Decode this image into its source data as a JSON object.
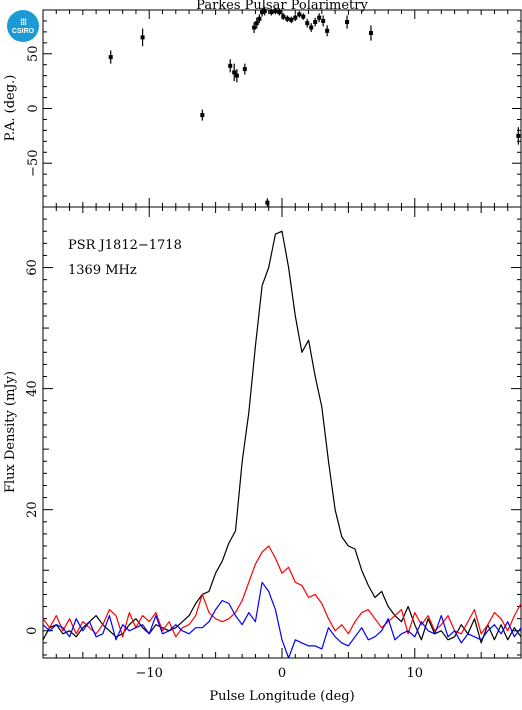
{
  "title": "Parkes Pulsar Polarimetry",
  "logo_text": "CSIRO",
  "chart_data": [
    {
      "type": "scatter",
      "panel": "top",
      "ylabel": "P.A. (deg.)",
      "xlabel": "",
      "xlim": [
        -18,
        18
      ],
      "ylim": [
        -90,
        90
      ],
      "x_ticks": [
        -10,
        0,
        10
      ],
      "y_ticks": [
        -50,
        0,
        50
      ],
      "y_tick_labels": [
        "−50",
        "0",
        "50"
      ],
      "points": [
        {
          "x": -12.9,
          "y": 47,
          "err": 6
        },
        {
          "x": -10.5,
          "y": 65,
          "err": 8
        },
        {
          "x": -6.0,
          "y": -6,
          "err": 5
        },
        {
          "x": -3.9,
          "y": 39,
          "err": 6
        },
        {
          "x": -3.6,
          "y": 33,
          "err": 8
        },
        {
          "x": -3.4,
          "y": 30,
          "err": 6
        },
        {
          "x": -2.8,
          "y": 36,
          "err": 5
        },
        {
          "x": -2.1,
          "y": 74,
          "err": 5
        },
        {
          "x": -1.9,
          "y": 78,
          "err": 5
        },
        {
          "x": -1.7,
          "y": 82,
          "err": 4
        },
        {
          "x": -1.5,
          "y": 88,
          "err": 4
        },
        {
          "x": -1.3,
          "y": 89,
          "err": 4
        },
        {
          "x": -1.1,
          "y": -86,
          "err": 4
        },
        {
          "x": -0.8,
          "y": 88,
          "err": 3
        },
        {
          "x": -0.5,
          "y": 89,
          "err": 3
        },
        {
          "x": -0.2,
          "y": 88,
          "err": 3
        },
        {
          "x": 0.1,
          "y": 84,
          "err": 3
        },
        {
          "x": 0.4,
          "y": 82,
          "err": 3
        },
        {
          "x": 0.7,
          "y": 81,
          "err": 3
        },
        {
          "x": 1.0,
          "y": 83,
          "err": 3
        },
        {
          "x": 1.3,
          "y": 86,
          "err": 3
        },
        {
          "x": 1.6,
          "y": 84,
          "err": 3
        },
        {
          "x": 1.9,
          "y": 78,
          "err": 4
        },
        {
          "x": 2.2,
          "y": 74,
          "err": 4
        },
        {
          "x": 2.5,
          "y": 79,
          "err": 4
        },
        {
          "x": 2.8,
          "y": 83,
          "err": 4
        },
        {
          "x": 3.1,
          "y": 80,
          "err": 5
        },
        {
          "x": 3.4,
          "y": 71,
          "err": 5
        },
        {
          "x": 4.9,
          "y": 79,
          "err": 6
        },
        {
          "x": 6.7,
          "y": 69,
          "err": 7
        },
        {
          "x": 17.8,
          "y": -25,
          "err": 8
        }
      ]
    },
    {
      "type": "line",
      "panel": "bottom",
      "xlabel": "Pulse Longitude (deg)",
      "ylabel": "Flux Density (mJy)",
      "xlim": [
        -18,
        18
      ],
      "ylim": [
        -4.5,
        70
      ],
      "x_ticks": [
        -10,
        0,
        10
      ],
      "x_tick_labels": [
        "−10",
        "0",
        "10"
      ],
      "y_ticks": [
        0,
        20,
        40,
        60
      ],
      "annotations": [
        "PSR J1812−1718",
        "1369 MHz"
      ],
      "x": [
        -18.0,
        -17.5,
        -17.0,
        -16.5,
        -16.0,
        -15.5,
        -15.0,
        -14.5,
        -14.0,
        -13.5,
        -13.0,
        -12.5,
        -12.0,
        -11.5,
        -11.0,
        -10.5,
        -10.0,
        -9.5,
        -9.0,
        -8.5,
        -8.0,
        -7.5,
        -7.0,
        -6.5,
        -6.0,
        -5.5,
        -5.0,
        -4.5,
        -4.0,
        -3.5,
        -3.0,
        -2.5,
        -2.0,
        -1.5,
        -1.0,
        -0.5,
        0.0,
        0.5,
        1.0,
        1.5,
        2.0,
        2.5,
        3.0,
        3.5,
        4.0,
        4.5,
        5.0,
        5.5,
        6.0,
        6.5,
        7.0,
        7.5,
        8.0,
        8.5,
        9.0,
        9.5,
        10.0,
        10.5,
        11.0,
        11.5,
        12.0,
        12.5,
        13.0,
        13.5,
        14.0,
        14.5,
        15.0,
        15.5,
        16.0,
        16.5,
        17.0,
        17.5,
        18.0
      ],
      "series": [
        {
          "color": "#000000",
          "values": [
            -1.5,
            0.5,
            1.0,
            -0.5,
            0.0,
            -1.0,
            0.5,
            1.5,
            2.5,
            1.0,
            0.0,
            -1.0,
            -0.5,
            1.0,
            2.0,
            0.5,
            -0.5,
            1.0,
            0.5,
            0.0,
            0.5,
            1.5,
            2.5,
            4.5,
            6.0,
            6.5,
            9.5,
            11.5,
            14.5,
            16.5,
            28.0,
            36.0,
            47.0,
            57.0,
            60.0,
            65.5,
            66.0,
            60.0,
            52.0,
            46.0,
            48.0,
            42.0,
            37.0,
            28.0,
            20.0,
            15.5,
            14.0,
            13.5,
            10.0,
            7.5,
            5.5,
            6.5,
            4.0,
            2.5,
            1.5,
            4.0,
            1.0,
            -1.5,
            2.0,
            -0.5,
            0.0,
            -1.5,
            -1.0,
            1.0,
            -0.5,
            2.0,
            -2.0,
            1.0,
            -1.5,
            1.0,
            -1.5,
            0.5,
            -1.0
          ]
        },
        {
          "color": "#ff0000",
          "values": [
            2.0,
            0.5,
            2.5,
            0.0,
            2.0,
            -0.5,
            1.5,
            0.5,
            -0.5,
            1.0,
            3.5,
            2.5,
            -1.0,
            3.0,
            0.5,
            2.5,
            1.5,
            3.0,
            0.0,
            1.5,
            -1.0,
            0.5,
            1.0,
            2.5,
            6.0,
            3.0,
            2.0,
            1.5,
            2.0,
            3.0,
            5.0,
            8.0,
            11.0,
            13.0,
            14.0,
            12.0,
            9.5,
            10.5,
            8.0,
            7.5,
            5.5,
            6.0,
            4.5,
            2.0,
            0.0,
            1.0,
            -0.5,
            1.5,
            3.0,
            3.5,
            2.0,
            0.5,
            1.5,
            2.5,
            3.5,
            -0.5,
            3.0,
            1.0,
            2.5,
            0.0,
            1.0,
            2.5,
            0.0,
            -0.5,
            1.5,
            3.5,
            -0.5,
            1.0,
            3.0,
            2.0,
            0.0,
            2.5,
            4.5
          ]
        },
        {
          "color": "#0000ff",
          "values": [
            1.0,
            0.0,
            1.0,
            0.5,
            -1.0,
            2.0,
            0.0,
            1.5,
            -1.0,
            -0.5,
            2.5,
            -1.5,
            1.0,
            0.0,
            0.5,
            1.0,
            -0.5,
            2.5,
            -0.5,
            0.0,
            1.0,
            0.0,
            -0.5,
            0.5,
            0.5,
            1.5,
            3.5,
            5.0,
            4.5,
            2.5,
            1.0,
            3.0,
            1.5,
            8.0,
            6.5,
            3.5,
            -1.5,
            -4.5,
            -1.5,
            -2.0,
            -2.5,
            -2.5,
            -3.0,
            0.5,
            -1.0,
            -2.0,
            -2.5,
            -1.0,
            0.5,
            -1.5,
            -1.0,
            0.0,
            2.0,
            -1.5,
            -0.5,
            0.0,
            -1.0,
            1.5,
            0.0,
            -0.5,
            2.5,
            -1.0,
            0.0,
            -2.0,
            -0.5,
            -1.0,
            -1.5,
            0.0,
            1.0,
            -0.5,
            1.5,
            -1.0,
            0.5
          ]
        }
      ]
    }
  ]
}
